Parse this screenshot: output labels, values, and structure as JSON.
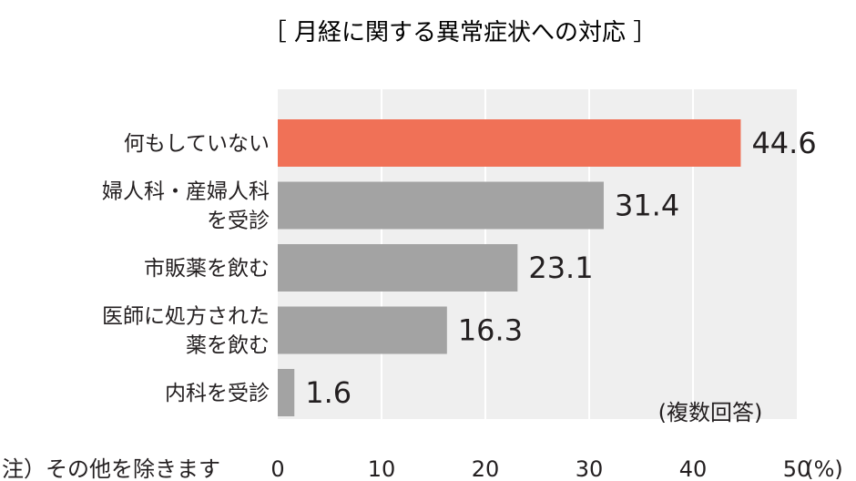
{
  "chart_data": {
    "type": "bar",
    "orientation": "horizontal",
    "title": "［ 月経に関する異常症状への対応 ］",
    "categories": [
      [
        "何もしていない"
      ],
      [
        "婦人科・産婦人科",
        "を受診"
      ],
      [
        "市販薬を飲む"
      ],
      [
        "医師に処方された",
        "薬を飲む"
      ],
      [
        "内科を受診"
      ]
    ],
    "values": [
      44.6,
      31.4,
      23.1,
      16.3,
      1.6
    ],
    "value_labels": [
      "44.6",
      "31.4",
      "23.1",
      "16.3",
      "1.6"
    ],
    "xlim": [
      0,
      50
    ],
    "xticks": [
      "0",
      "10",
      "20",
      "30",
      "40",
      "50"
    ],
    "x_unit": "(%)",
    "annotation": "(複数回答)",
    "footnote": "注）その他を除きます",
    "grid": true,
    "colors": {
      "highlight": "#f07157",
      "bar": "#a3a3a3",
      "plot_bg": "#efefef",
      "grid": "#ffffff"
    }
  }
}
